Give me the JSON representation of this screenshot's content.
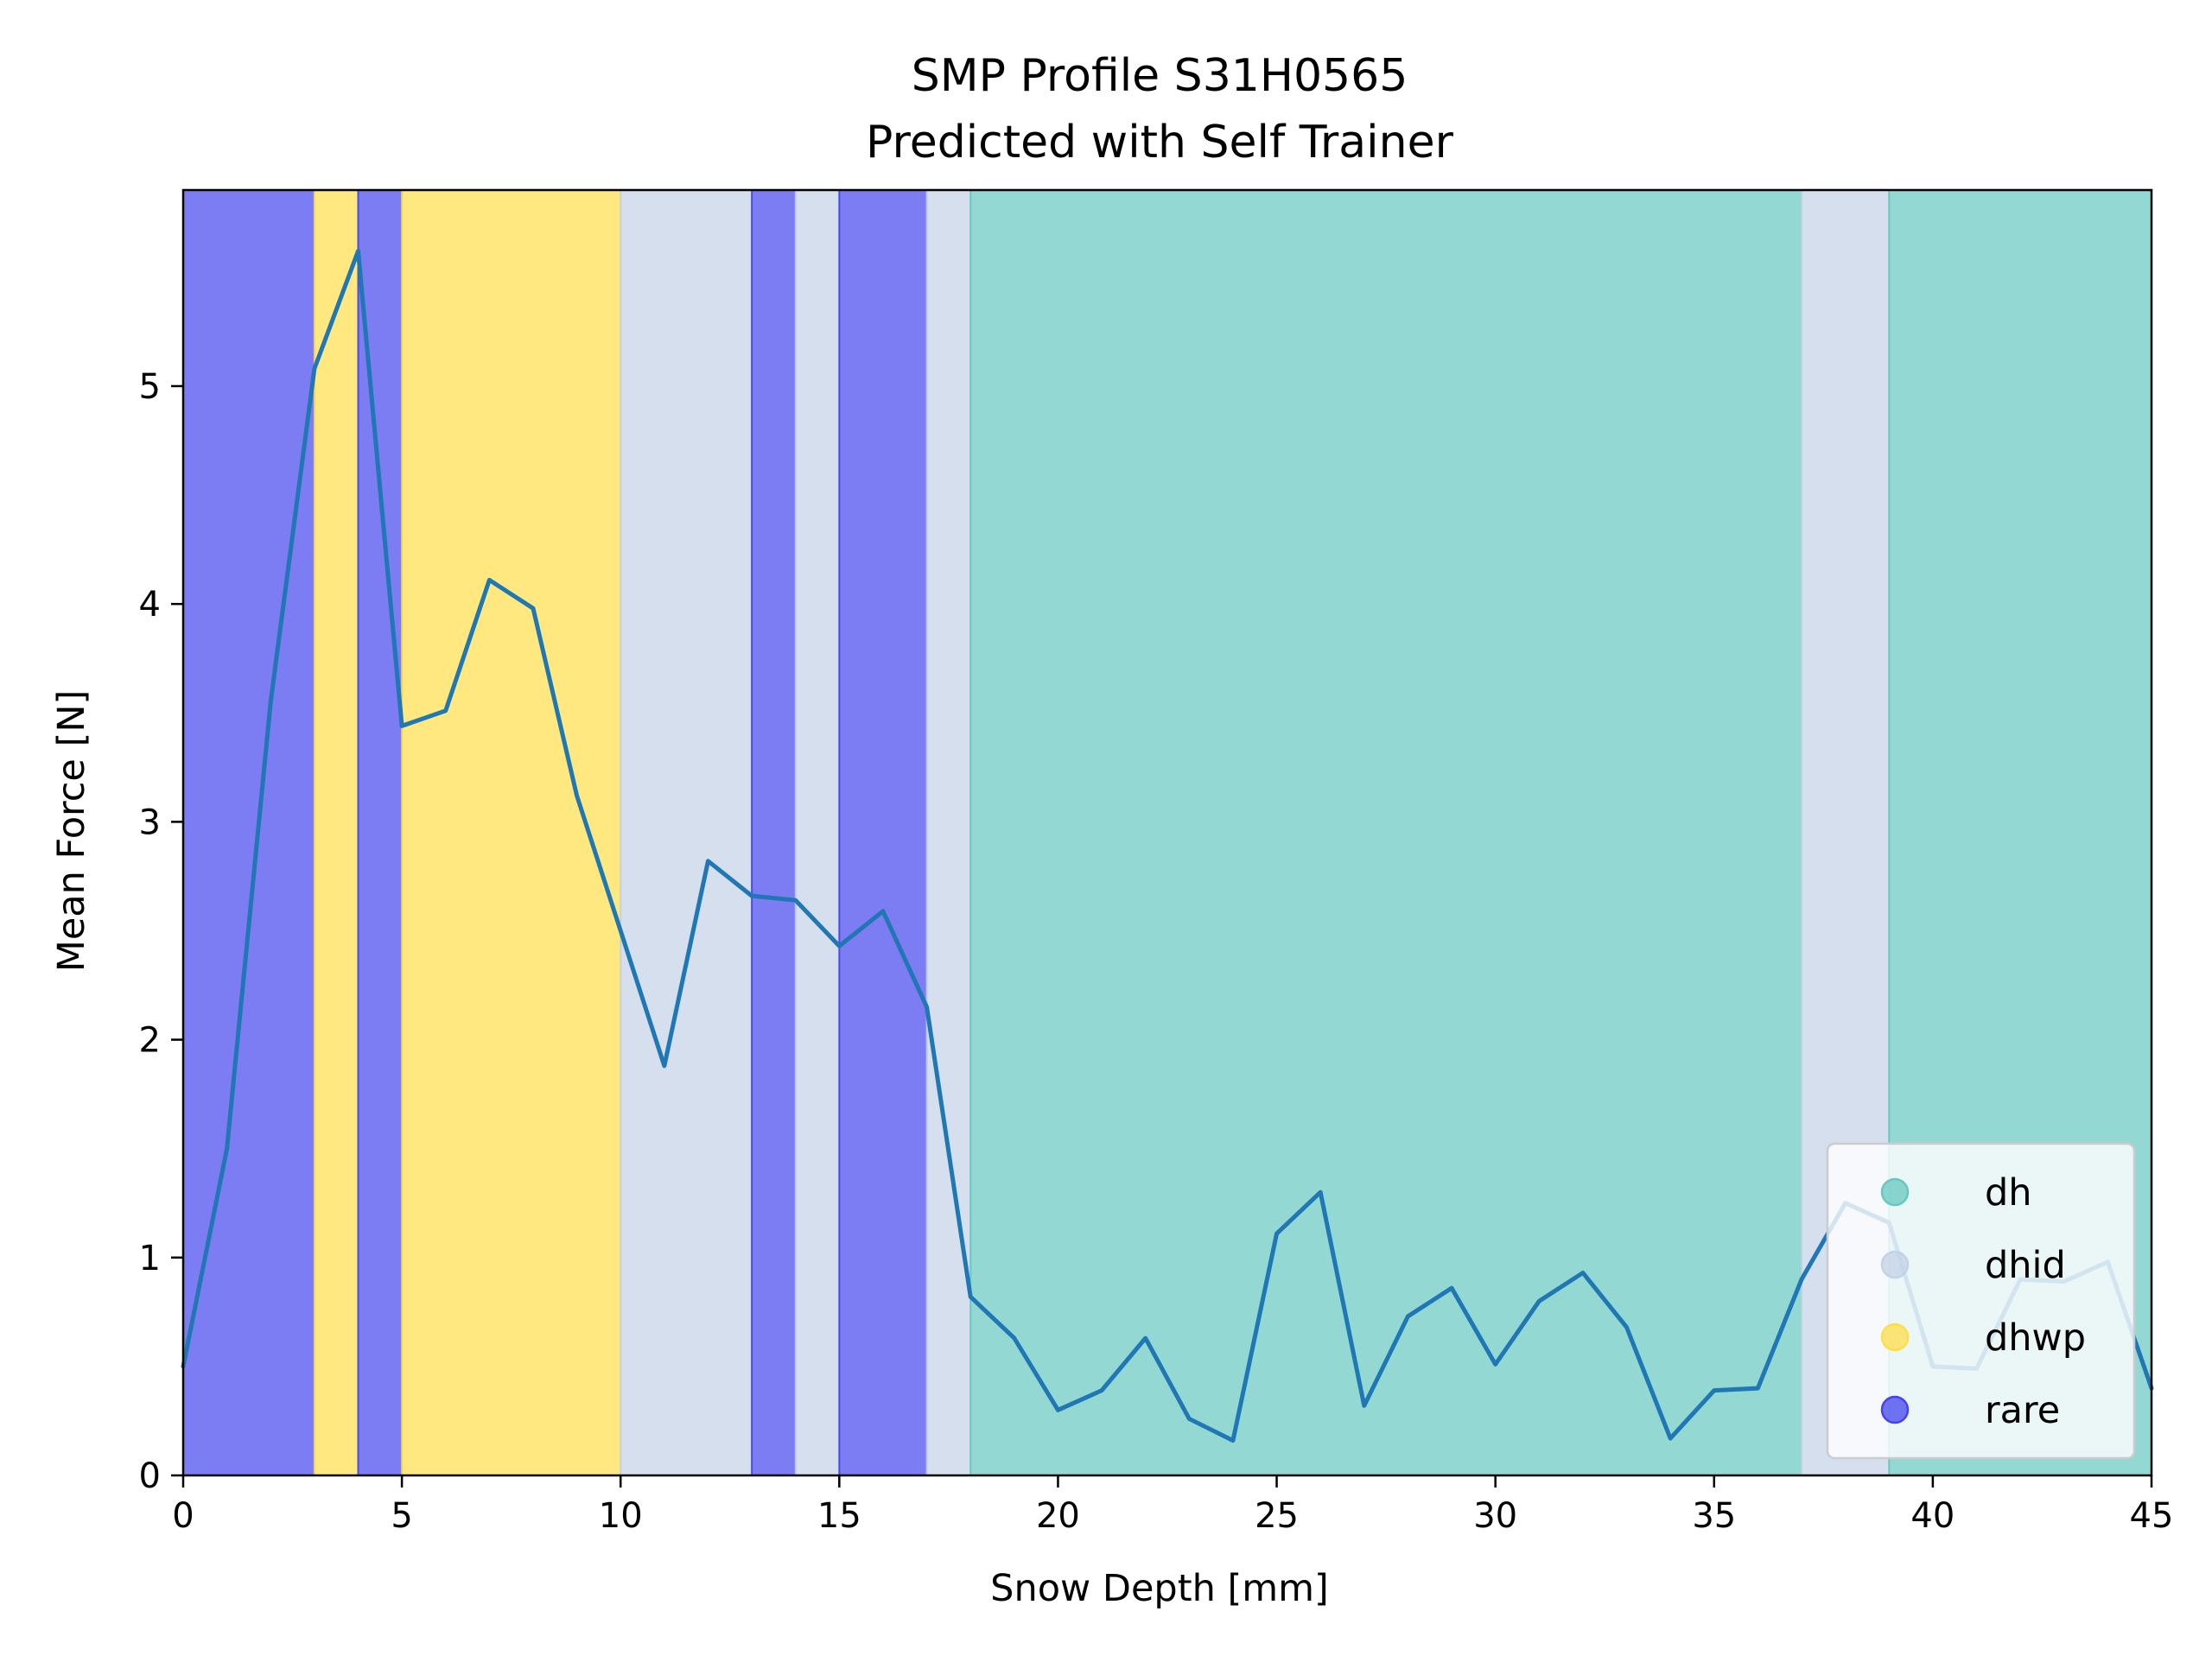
{
  "chart_data": {
    "type": "line",
    "title": "SMP Profile S31H0565",
    "subtitle": "Predicted with Self Trainer",
    "xlabel": "Snow Depth [mm]",
    "ylabel": "Mean Force [N]",
    "xlim": [
      0,
      45
    ],
    "ylim": [
      0,
      5.9
    ],
    "xticks": [
      0,
      5,
      10,
      15,
      20,
      25,
      30,
      35,
      40,
      45
    ],
    "yticks": [
      0,
      1,
      2,
      3,
      4,
      5
    ],
    "grid": false,
    "legend_position": "bottom-right",
    "classes": [
      {
        "label": "dh",
        "color": "#66c8c0"
      },
      {
        "label": "dhid",
        "color": "#c3d2e6"
      },
      {
        "label": "dhwp",
        "color": "#ffde4a"
      },
      {
        "label": "rare",
        "color": "#4444ee"
      }
    ],
    "bands": [
      {
        "start": 0,
        "end": 3,
        "class": "rare"
      },
      {
        "start": 3,
        "end": 4,
        "class": "dhwp"
      },
      {
        "start": 4,
        "end": 5,
        "class": "rare"
      },
      {
        "start": 5,
        "end": 10,
        "class": "dhwp"
      },
      {
        "start": 10,
        "end": 13,
        "class": "dhid"
      },
      {
        "start": 13,
        "end": 14,
        "class": "rare"
      },
      {
        "start": 14,
        "end": 15,
        "class": "dhid"
      },
      {
        "start": 15,
        "end": 17,
        "class": "rare"
      },
      {
        "start": 17,
        "end": 18,
        "class": "dhid"
      },
      {
        "start": 18,
        "end": 37,
        "class": "dh"
      },
      {
        "start": 37,
        "end": 39,
        "class": "dhid"
      },
      {
        "start": 39,
        "end": 45,
        "class": "dh"
      }
    ],
    "series": [
      {
        "color": "#1f77b4",
        "x": [
          0,
          1,
          2,
          3,
          4,
          5,
          6,
          7,
          8,
          9,
          10,
          11,
          12,
          13,
          14,
          15,
          16,
          17,
          18,
          19,
          20,
          21,
          22,
          23,
          24,
          25,
          26,
          27,
          28,
          29,
          30,
          31,
          32,
          33,
          34,
          35,
          36,
          37,
          38,
          39,
          40,
          41,
          42,
          43,
          44,
          45
        ],
        "y": [
          0.5,
          1.5,
          3.55,
          5.08,
          5.62,
          3.44,
          3.51,
          4.11,
          3.98,
          3.12,
          2.5,
          1.88,
          2.82,
          2.66,
          2.64,
          2.43,
          2.59,
          2.15,
          0.82,
          0.63,
          0.3,
          0.39,
          0.63,
          0.26,
          0.16,
          1.11,
          1.3,
          0.32,
          0.73,
          0.86,
          0.51,
          0.8,
          0.93,
          0.68,
          0.17,
          0.39,
          0.4,
          0.9,
          1.25,
          1.16,
          0.5,
          0.49,
          0.9,
          0.89,
          0.98,
          0.4
        ]
      }
    ]
  }
}
